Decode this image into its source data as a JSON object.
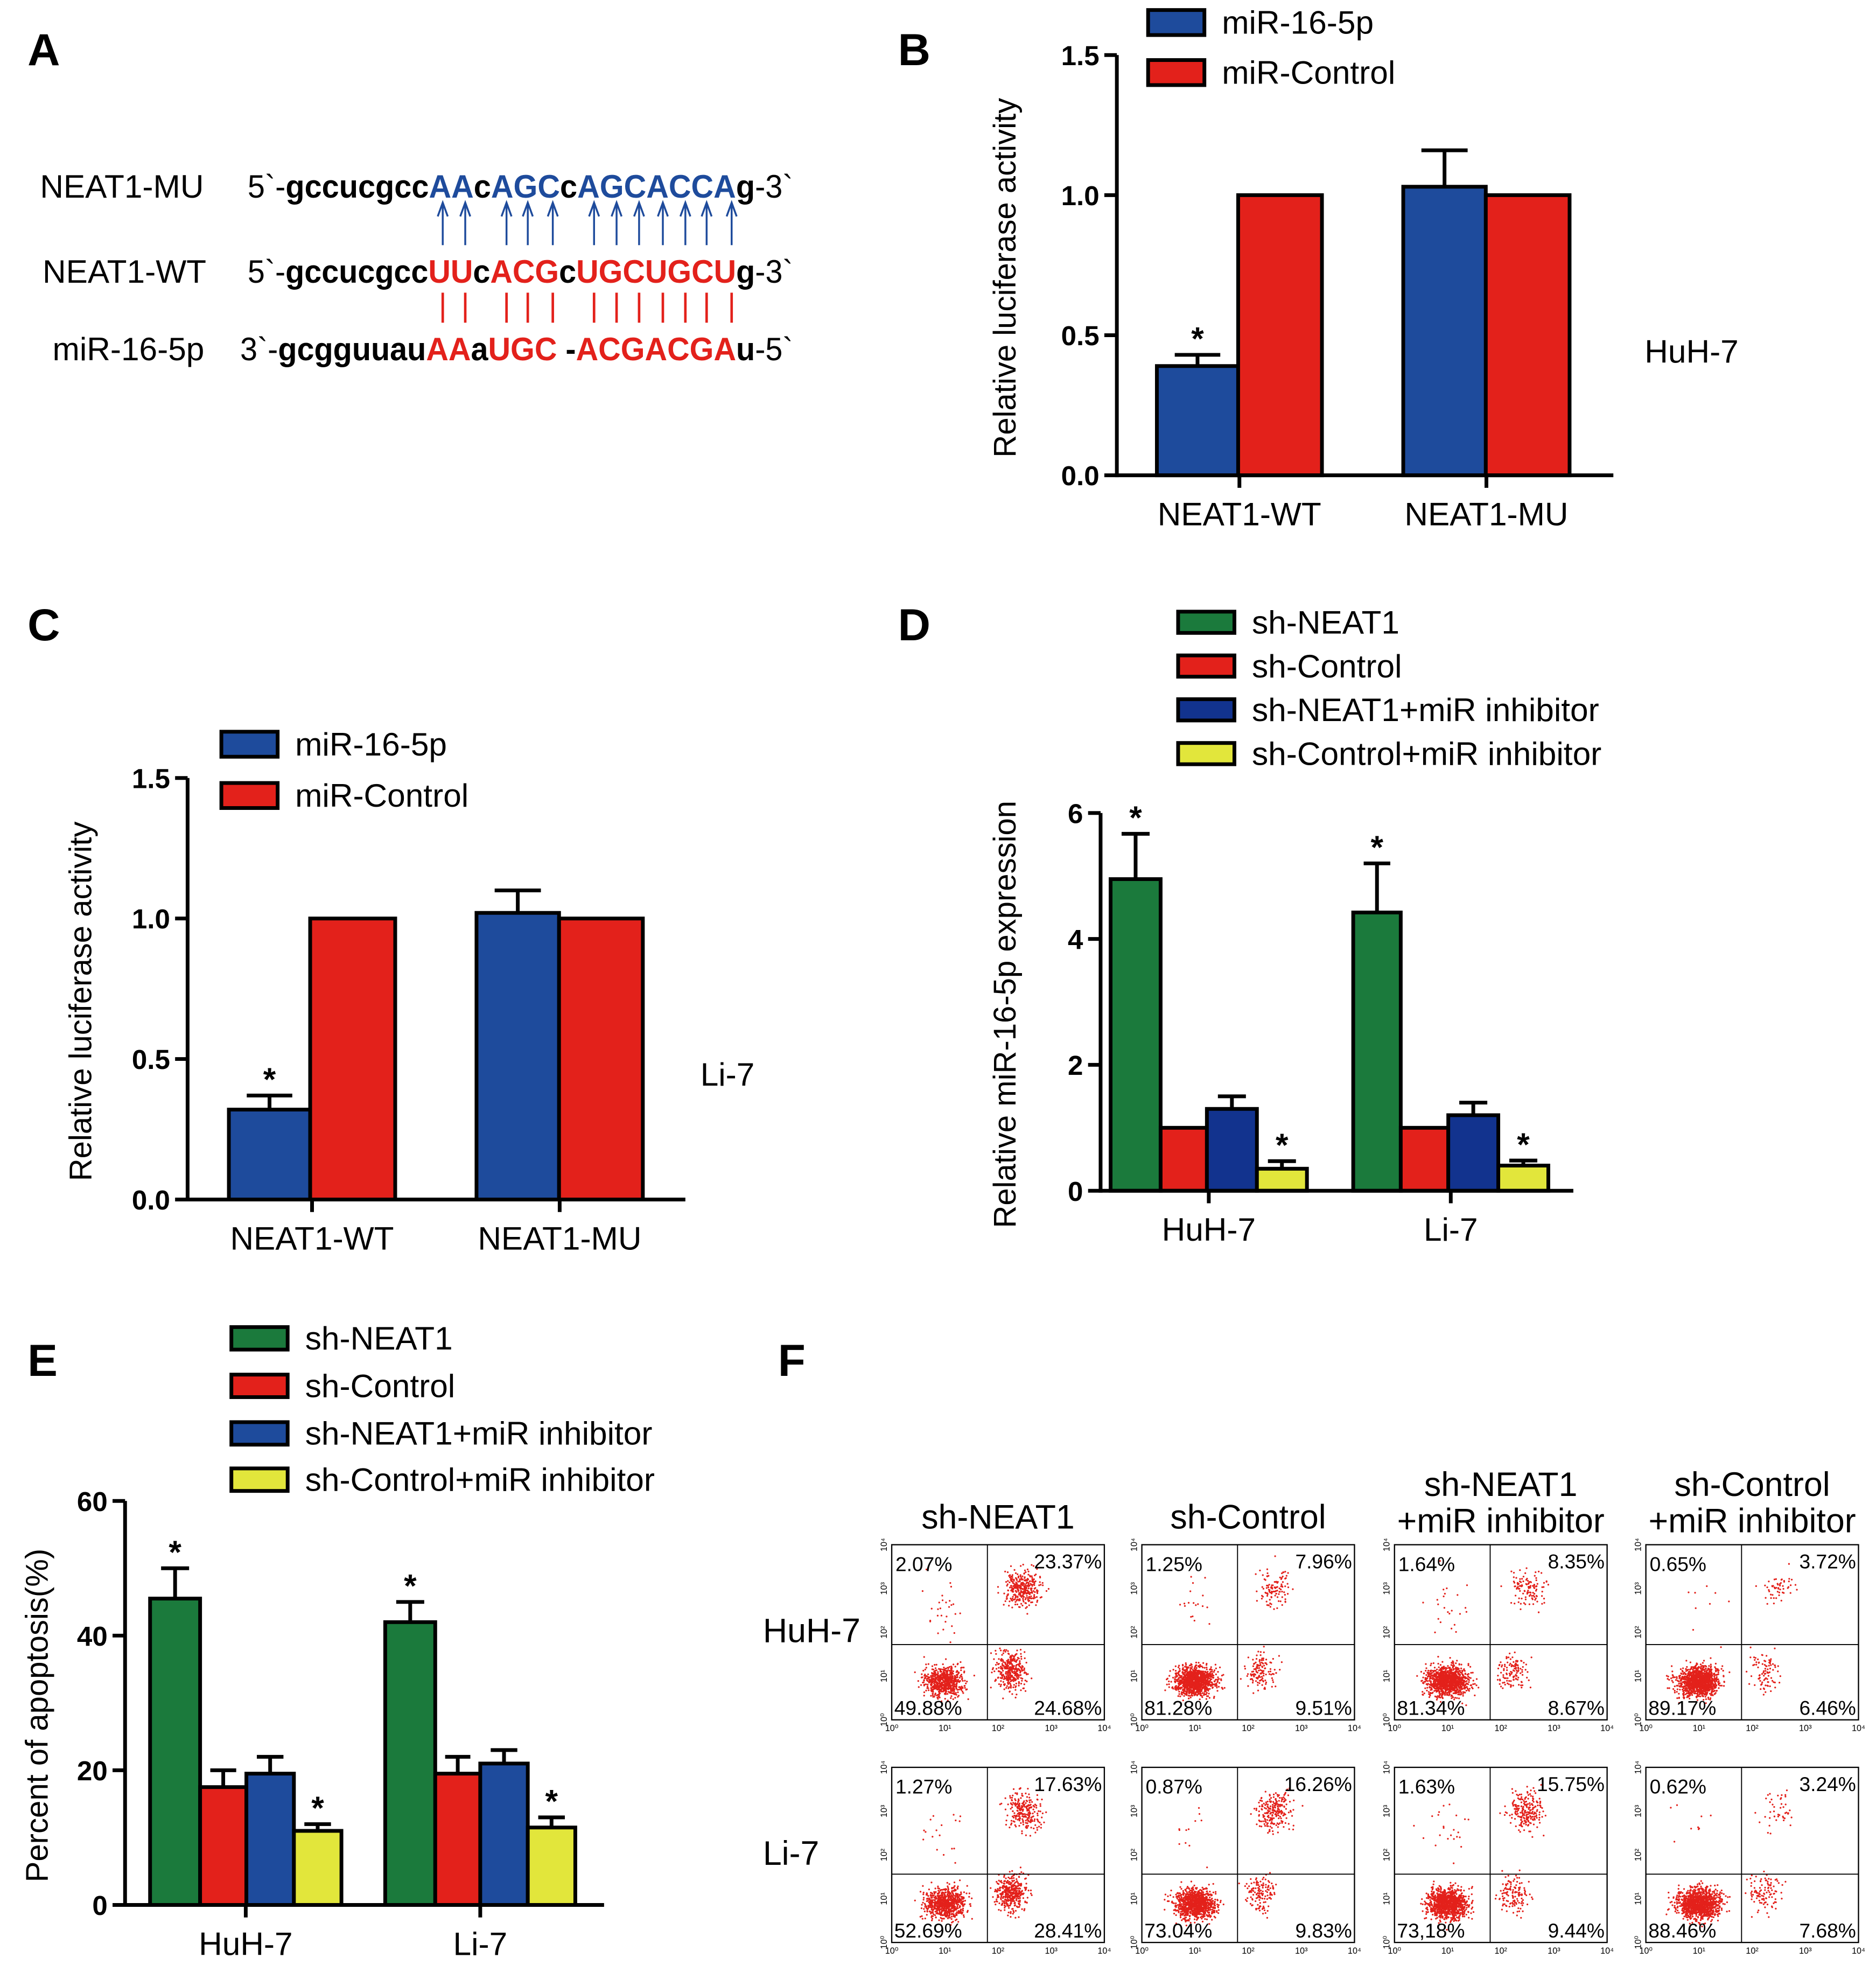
{
  "panel_letters": {
    "A": "A",
    "B": "B",
    "C": "C",
    "D": "D",
    "E": "E",
    "F": "F"
  },
  "colors": {
    "blue": "#1e4b9c",
    "red": "#e3211b",
    "green": "#1b7a3c",
    "dark_blue": "#12338e",
    "yellow": "#e2e63b",
    "mu_blue": "#1e4b9c"
  },
  "panel_a": {
    "rows": [
      {
        "label": "NEAT1-MU",
        "segments": [
          {
            "t": "5`-",
            "c": "#000",
            "bold": false
          },
          {
            "t": "gccucgcc",
            "c": "#000"
          },
          {
            "t": "AA",
            "c": "#1e4b9c"
          },
          {
            "t": "c",
            "c": "#000"
          },
          {
            "t": "AGC",
            "c": "#1e4b9c"
          },
          {
            "t": "c",
            "c": "#000"
          },
          {
            "t": "AGCACCA",
            "c": "#1e4b9c"
          },
          {
            "t": "g",
            "c": "#000"
          },
          {
            "t": "-3`",
            "c": "#000",
            "bold": false
          }
        ]
      },
      {
        "label": "NEAT1-WT",
        "segments": [
          {
            "t": "5`-",
            "c": "#000",
            "bold": false
          },
          {
            "t": "gccucgcc",
            "c": "#000"
          },
          {
            "t": "UU",
            "c": "#e3211b"
          },
          {
            "t": "c",
            "c": "#000"
          },
          {
            "t": "ACG",
            "c": "#e3211b"
          },
          {
            "t": "c",
            "c": "#000"
          },
          {
            "t": "UGCUGCU",
            "c": "#e3211b"
          },
          {
            "t": "g",
            "c": "#000"
          },
          {
            "t": "-3`",
            "c": "#000",
            "bold": false
          }
        ]
      },
      {
        "label": "miR-16-5p",
        "segments": [
          {
            "t": "3`-",
            "c": "#000",
            "bold": false
          },
          {
            "t": "gcgguuau",
            "c": "#000"
          },
          {
            "t": "AA",
            "c": "#e3211b"
          },
          {
            "t": "a",
            "c": "#000"
          },
          {
            "t": "UGC",
            "c": "#e3211b"
          },
          {
            "t": " -",
            "c": "#000"
          },
          {
            "t": "ACGACGA",
            "c": "#e3211b"
          },
          {
            "t": "u",
            "c": "#000"
          },
          {
            "t": "-5`",
            "c": "#000",
            "bold": false
          }
        ]
      }
    ]
  },
  "chart_data": [
    {
      "id": "B",
      "type": "bar",
      "title": "",
      "xlabel": "",
      "ylabel": "Relative luciferase activity",
      "ylim": [
        0,
        1.5
      ],
      "yticks": [
        "0.0",
        "0.5",
        "1.0",
        "1.5"
      ],
      "ytick_values": [
        0,
        0.5,
        1.0,
        1.5
      ],
      "categories": [
        "NEAT1-WT",
        "NEAT1-MU"
      ],
      "series": [
        {
          "name": "miR-16-5p",
          "color": "#1e4b9c",
          "values": [
            0.39,
            1.03
          ],
          "errors": [
            0.04,
            0.13
          ],
          "significance": [
            "*",
            ""
          ]
        },
        {
          "name": "miR-Control",
          "color": "#e3211b",
          "values": [
            1.0,
            1.0
          ],
          "errors": [
            0,
            0
          ],
          "significance": [
            "",
            ""
          ]
        }
      ],
      "side_label": "HuH-7",
      "legend": "top"
    },
    {
      "id": "C",
      "type": "bar",
      "title": "",
      "xlabel": "",
      "ylabel": "Relative luciferase activity",
      "ylim": [
        0,
        1.5
      ],
      "yticks": [
        "0.0",
        "0.5",
        "1.0",
        "1.5"
      ],
      "ytick_values": [
        0,
        0.5,
        1.0,
        1.5
      ],
      "categories": [
        "NEAT1-WT",
        "NEAT1-MU"
      ],
      "series": [
        {
          "name": "miR-16-5p",
          "color": "#1e4b9c",
          "values": [
            0.32,
            1.02
          ],
          "errors": [
            0.05,
            0.08
          ],
          "significance": [
            "*",
            ""
          ]
        },
        {
          "name": "miR-Control",
          "color": "#e3211b",
          "values": [
            1.0,
            1.0
          ],
          "errors": [
            0,
            0
          ],
          "significance": [
            "",
            ""
          ]
        }
      ],
      "side_label": "Li-7",
      "legend": "top"
    },
    {
      "id": "D",
      "type": "bar",
      "title": "",
      "xlabel": "",
      "ylabel": "Relative miR-16-5p expression",
      "ylim": [
        0,
        6
      ],
      "yticks": [
        "0",
        "2",
        "4",
        "6"
      ],
      "ytick_values": [
        0,
        2,
        4,
        6
      ],
      "categories": [
        "HuH-7",
        "Li-7"
      ],
      "series": [
        {
          "name": "sh-NEAT1",
          "color": "#1b7a3c",
          "values": [
            4.95,
            4.42
          ],
          "errors": [
            0.72,
            0.78
          ],
          "significance": [
            "*",
            "*"
          ]
        },
        {
          "name": "sh-Control",
          "color": "#e3211b",
          "values": [
            1.0,
            1.0
          ],
          "errors": [
            0,
            0
          ],
          "significance": [
            "",
            ""
          ]
        },
        {
          "name": "sh-NEAT1+miR inhibitor",
          "color": "#12338e",
          "values": [
            1.3,
            1.2
          ],
          "errors": [
            0.2,
            0.2
          ],
          "significance": [
            "",
            ""
          ]
        },
        {
          "name": "sh-Control+miR inhibitor",
          "color": "#e2e63b",
          "values": [
            0.35,
            0.4
          ],
          "errors": [
            0.12,
            0.08
          ],
          "significance": [
            "*",
            "*"
          ]
        }
      ],
      "side_label": "",
      "legend": "top"
    },
    {
      "id": "E",
      "type": "bar",
      "title": "",
      "xlabel": "",
      "ylabel": "Percent of apoptosis(%)",
      "ylim": [
        0,
        60
      ],
      "yticks": [
        "0",
        "20",
        "40",
        "60"
      ],
      "ytick_values": [
        0,
        20,
        40,
        60
      ],
      "categories": [
        "HuH-7",
        "Li-7"
      ],
      "series": [
        {
          "name": "sh-NEAT1",
          "color": "#1b7a3c",
          "values": [
            45.5,
            42.0
          ],
          "errors": [
            4.5,
            3.0
          ],
          "significance": [
            "*",
            "*"
          ]
        },
        {
          "name": "sh-Control",
          "color": "#e3211b",
          "values": [
            17.5,
            19.5
          ],
          "errors": [
            2.5,
            2.5
          ],
          "significance": [
            "",
            ""
          ]
        },
        {
          "name": "sh-NEAT1+miR inhibitor",
          "color": "#1e4b9c",
          "values": [
            19.5,
            21.0
          ],
          "errors": [
            2.5,
            2.0
          ],
          "significance": [
            "",
            ""
          ]
        },
        {
          "name": "sh-Control+miR inhibitor",
          "color": "#e2e63b",
          "values": [
            11.0,
            11.5
          ],
          "errors": [
            1.0,
            1.5
          ],
          "significance": [
            "*",
            "*"
          ]
        }
      ],
      "side_label": "",
      "legend": "top"
    }
  ],
  "flow_cytometry": {
    "type": "scatter",
    "columns": [
      [
        "sh-NEAT1"
      ],
      [
        "sh-Control"
      ],
      [
        "sh-NEAT1",
        "+miR inhibitor"
      ],
      [
        "sh-Control",
        "+miR inhibitor"
      ]
    ],
    "rows": [
      "HuH-7",
      "Li-7"
    ],
    "axis_ticks": [
      "10⁰",
      "10¹",
      "10²",
      "10³",
      "10⁴"
    ],
    "dot_color": "#e3211b",
    "quadrants": [
      [
        {
          "UL": "2.07%",
          "UR": "23.37%",
          "LL": "49.88%",
          "LR": "24.68%"
        },
        {
          "UL": "1.25%",
          "UR": "7.96%",
          "LL": "81.28%",
          "LR": "9.51%"
        },
        {
          "UL": "1.64%",
          "UR": "8.35%",
          "LL": "81.34%",
          "LR": "8.67%"
        },
        {
          "UL": "0.65%",
          "UR": "3.72%",
          "LL": "89.17%",
          "LR": "6.46%"
        }
      ],
      [
        {
          "UL": "1.27%",
          "UR": "17.63%",
          "LL": "52.69%",
          "LR": "28.41%"
        },
        {
          "UL": "0.87%",
          "UR": "16.26%",
          "LL": "73.04%",
          "LR": "9.83%"
        },
        {
          "UL": "1.63%",
          "UR": "15.75%",
          "LL": "73,18%",
          "LR": "9.44%"
        },
        {
          "UL": "0.62%",
          "UR": "3.24%",
          "LL": "88.46%",
          "LR": "7.68%"
        }
      ]
    ]
  }
}
